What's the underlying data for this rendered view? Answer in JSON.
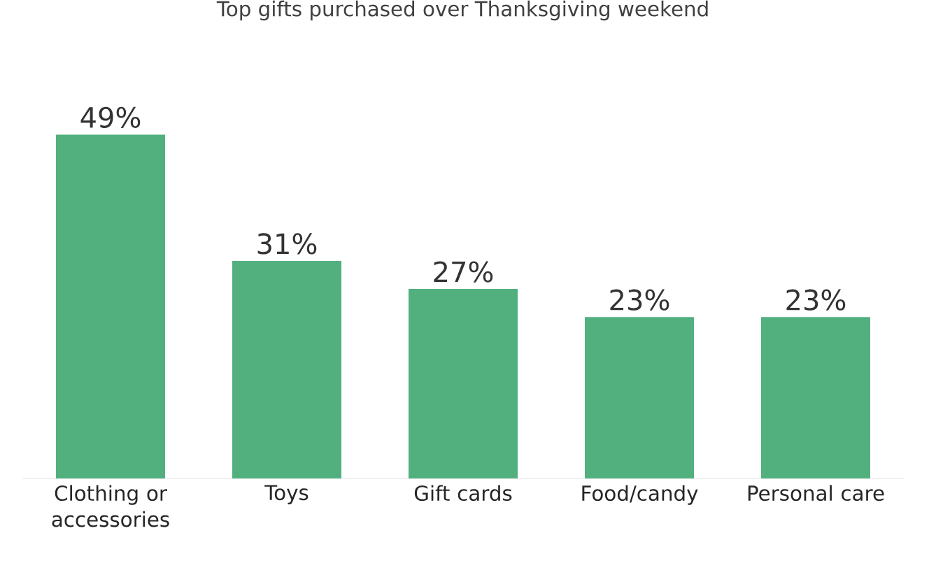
{
  "chart_data": {
    "type": "bar",
    "title": "Top gifts purchased over Thanksgiving weekend",
    "categories": [
      "Clothing or accessories",
      "Toys",
      "Gift cards",
      "Food/candy",
      "Personal care"
    ],
    "values": [
      49,
      31,
      27,
      23,
      23
    ],
    "value_labels": [
      "49%",
      "31%",
      "27%",
      "23%",
      "23%"
    ],
    "color": "#52b07f"
  }
}
